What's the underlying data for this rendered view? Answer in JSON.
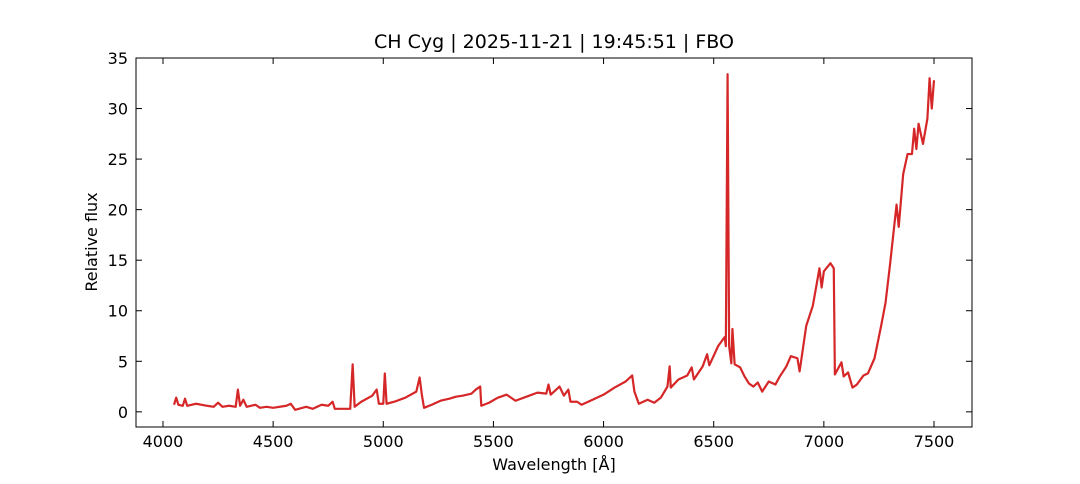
{
  "chart_data": {
    "type": "line",
    "title": "CH Cyg | 2025-11-21 | 19:45:51 | FBO",
    "x_label": "Wavelength [Å]",
    "y_label": "Relative flux",
    "xlim": [
      3877.5,
      7672.5
    ],
    "ylim": [
      -1.5,
      35
    ],
    "xticks": [
      4000,
      4500,
      5000,
      5500,
      6000,
      6500,
      7000,
      7500
    ],
    "yticks": [
      0,
      5,
      10,
      15,
      20,
      25,
      30,
      35
    ],
    "series": [
      {
        "color": "#d62728",
        "x": [
          4050,
          4060,
          4070,
          4090,
          4100,
          4110,
          4150,
          4200,
          4230,
          4250,
          4270,
          4300,
          4330,
          4340,
          4350,
          4365,
          4380,
          4420,
          4440,
          4470,
          4500,
          4560,
          4580,
          4600,
          4650,
          4680,
          4720,
          4750,
          4770,
          4780,
          4850,
          4861,
          4870,
          4900,
          4950,
          4970,
          4980,
          5000,
          5007,
          5015,
          5050,
          5100,
          5150,
          5165,
          5175,
          5185,
          5220,
          5260,
          5300,
          5330,
          5360,
          5400,
          5420,
          5440,
          5445,
          5480,
          5520,
          5560,
          5600,
          5650,
          5700,
          5740,
          5750,
          5760,
          5800,
          5820,
          5840,
          5850,
          5880,
          5900,
          5950,
          6000,
          6050,
          6100,
          6130,
          6140,
          6160,
          6200,
          6230,
          6260,
          6290,
          6300,
          6305,
          6340,
          6380,
          6400,
          6410,
          6450,
          6470,
          6480,
          6520,
          6550,
          6555,
          6563,
          6570,
          6580,
          6585,
          6595,
          6620,
          6640,
          6660,
          6680,
          6700,
          6720,
          6750,
          6780,
          6800,
          6830,
          6850,
          6880,
          6890,
          6920,
          6950,
          6980,
          6990,
          7000,
          7030,
          7045,
          7050,
          7080,
          7090,
          7110,
          7130,
          7150,
          7180,
          7200,
          7230,
          7260,
          7280,
          7300,
          7320,
          7330,
          7340,
          7360,
          7380,
          7400,
          7410,
          7420,
          7430,
          7450,
          7470,
          7480,
          7490,
          7500
        ],
        "values": [
          0.7,
          1.4,
          0.7,
          0.6,
          1.3,
          0.6,
          0.8,
          0.6,
          0.5,
          0.9,
          0.5,
          0.6,
          0.5,
          2.2,
          0.6,
          1.2,
          0.5,
          0.7,
          0.4,
          0.5,
          0.4,
          0.6,
          0.8,
          0.2,
          0.5,
          0.3,
          0.7,
          0.6,
          1.0,
          0.3,
          0.3,
          4.7,
          0.5,
          1.0,
          1.6,
          2.2,
          0.8,
          0.8,
          3.8,
          0.8,
          1.0,
          1.4,
          2.0,
          3.4,
          1.7,
          0.4,
          0.7,
          1.1,
          1.3,
          1.5,
          1.6,
          1.8,
          2.2,
          2.5,
          0.6,
          0.9,
          1.4,
          1.7,
          1.1,
          1.5,
          1.9,
          1.8,
          2.7,
          1.7,
          2.5,
          1.6,
          2.2,
          1.0,
          1.0,
          0.7,
          1.2,
          1.7,
          2.4,
          3.0,
          3.6,
          2.0,
          0.8,
          1.2,
          0.9,
          1.4,
          2.5,
          4.5,
          2.4,
          3.2,
          3.6,
          4.4,
          3.2,
          4.5,
          5.7,
          4.6,
          6.5,
          7.4,
          6.5,
          33.4,
          6.5,
          4.8,
          8.2,
          4.7,
          4.4,
          3.5,
          2.8,
          2.5,
          2.9,
          2.0,
          3.0,
          2.7,
          3.5,
          4.5,
          5.5,
          5.3,
          4.0,
          8.5,
          10.5,
          14.2,
          12.3,
          13.9,
          14.7,
          14.2,
          3.7,
          4.9,
          3.5,
          3.9,
          2.4,
          2.7,
          3.6,
          3.8,
          5.3,
          8.5,
          10.8,
          14.5,
          18.5,
          20.5,
          18.3,
          23.5,
          25.5,
          25.5,
          28.0,
          26.0,
          28.5,
          26.5,
          29.0,
          33.0,
          30.0,
          32.8
        ]
      }
    ]
  }
}
